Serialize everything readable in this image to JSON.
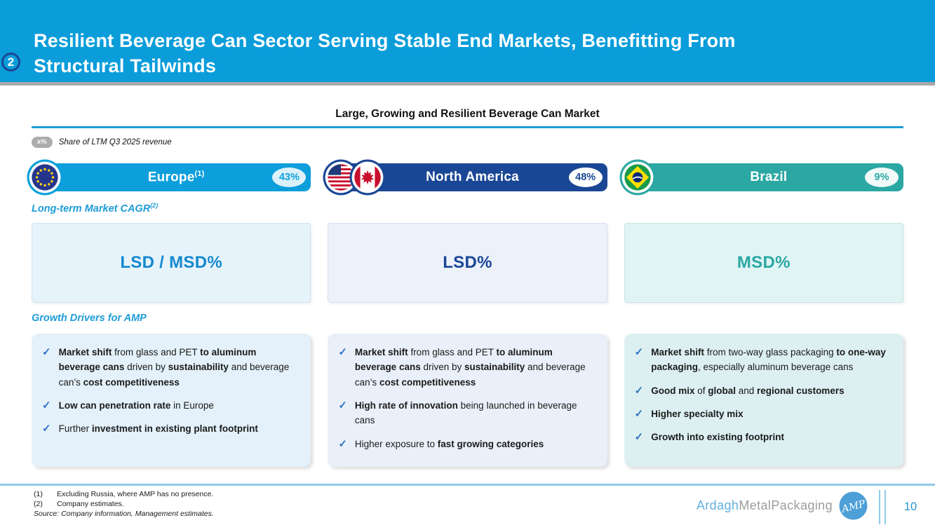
{
  "header": {
    "badge": "2",
    "title_line1": "Resilient Beverage Can Sector Serving Stable End Markets, Benefitting From",
    "title_line2": "Structural Tailwinds"
  },
  "section": {
    "title": "Large, Growing and Resilient Beverage Can Market",
    "legend_badge": "x%",
    "legend_note": "Share of LTM Q3 2025 revenue"
  },
  "labels": {
    "cagr": "Long-term Market CAGR",
    "cagr_sup": "(2)",
    "drivers": "Growth Drivers for AMP"
  },
  "colors": {
    "top_bar": "#0A9DDA",
    "accent_blue": "#1E9CD8",
    "navy": "#1A4795",
    "teal": "#2BA7A4",
    "check": "#2E74C4",
    "footer_rule": "#8FCBEA"
  },
  "columns": [
    {
      "id": "europe",
      "name": "Europe",
      "sup": "(1)",
      "share": "43%",
      "flags": [
        "eu"
      ],
      "cagr": "LSD / MSD%",
      "colors": {
        "pill": "#0C9FDB",
        "badge_bg": "#DDF1FB",
        "badge_text": "#0C9FDB",
        "cagr_bg": "#E7F3FB",
        "cagr_border": "#CFE3F2",
        "cagr_text": "#1489CE",
        "box_bg": "#E4F1FA"
      },
      "drivers": [
        [
          {
            "t": "Market shift",
            "b": 1
          },
          {
            "t": " from glass and PET ",
            "b": 0
          },
          {
            "t": "to aluminum beverage cans",
            "b": 1
          },
          {
            "t": " driven by ",
            "b": 0
          },
          {
            "t": "sustainability",
            "b": 1
          },
          {
            "t": " and beverage can’s ",
            "b": 0
          },
          {
            "t": "cost competitiveness",
            "b": 1
          }
        ],
        [
          {
            "t": "Low can penetration rate",
            "b": 1
          },
          {
            "t": " in Europe",
            "b": 0
          }
        ],
        [
          {
            "t": "Further ",
            "b": 0
          },
          {
            "t": "investment in existing plant footprint",
            "b": 1
          }
        ]
      ]
    },
    {
      "id": "north-america",
      "name": "North America",
      "sup": "",
      "share": "48%",
      "flags": [
        "us",
        "canada"
      ],
      "cagr": "LSD%",
      "colors": {
        "pill": "#1A4795",
        "badge_bg": "#FFFFFF",
        "badge_text": "#1A4795",
        "cagr_bg": "#ECF1FA",
        "cagr_border": "#D6DEF0",
        "cagr_text": "#1A4795",
        "box_bg": "#EAF0F9"
      },
      "drivers": [
        [
          {
            "t": "Market shift",
            "b": 1
          },
          {
            "t": " from glass and PET ",
            "b": 0
          },
          {
            "t": "to aluminum beverage cans",
            "b": 1
          },
          {
            "t": " driven by ",
            "b": 0
          },
          {
            "t": "sustainability",
            "b": 1
          },
          {
            "t": " and beverage can’s ",
            "b": 0
          },
          {
            "t": "cost competitiveness",
            "b": 1
          }
        ],
        [
          {
            "t": "High rate of innovation",
            "b": 1
          },
          {
            "t": " being launched in beverage cans",
            "b": 0
          }
        ],
        [
          {
            "t": "Higher exposure to ",
            "b": 0
          },
          {
            "t": "fast growing categories",
            "b": 1
          }
        ]
      ]
    },
    {
      "id": "brazil",
      "name": "Brazil",
      "sup": "",
      "share": "9%",
      "flags": [
        "brazil"
      ],
      "cagr": "MSD%",
      "colors": {
        "pill": "#2BA7A4",
        "badge_bg": "#EFFAF9",
        "badge_text": "#2BA7A4",
        "cagr_bg": "#E0F4F3",
        "cagr_border": "#C5E6E4",
        "cagr_text": "#2BA7A4",
        "box_bg": "#DDF0F1"
      },
      "drivers": [
        [
          {
            "t": "Market shift",
            "b": 1
          },
          {
            "t": " from two-way glass packaging ",
            "b": 0
          },
          {
            "t": "to one-way packaging",
            "b": 1
          },
          {
            "t": ", especially aluminum beverage cans",
            "b": 0
          }
        ],
        [
          {
            "t": "Good mix",
            "b": 1
          },
          {
            "t": " of ",
            "b": 0
          },
          {
            "t": "global",
            "b": 1
          },
          {
            "t": " and ",
            "b": 0
          },
          {
            "t": "regional customers",
            "b": 1
          }
        ],
        [
          {
            "t": "Higher specialty mix",
            "b": 1
          }
        ],
        [
          {
            "t": "Growth into existing footprint",
            "b": 1
          }
        ]
      ]
    }
  ],
  "footer": {
    "footnotes": [
      {
        "num": "(1)",
        "text": "Excluding Russia, where AMP has no presence."
      },
      {
        "num": "(2)",
        "text": "Company estimates."
      }
    ],
    "source": "Source: Company information, Management estimates.",
    "logo_ardagh": "Ardagh",
    "logo_rest": "MetalPackaging",
    "page_number": "10"
  }
}
